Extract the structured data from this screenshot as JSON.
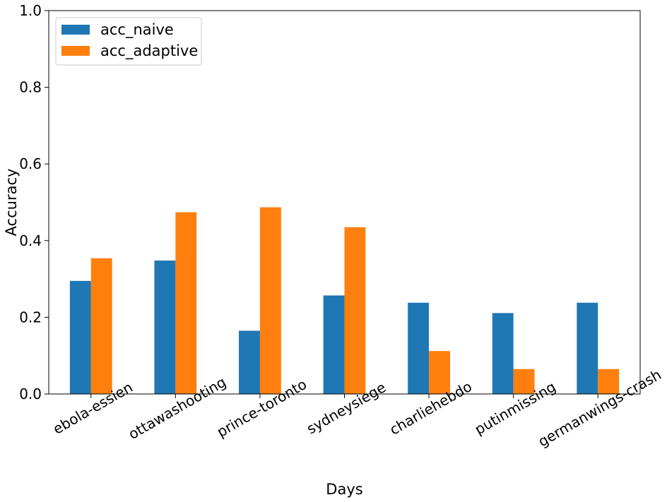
{
  "chart_data": {
    "type": "bar",
    "xlabel": "Days",
    "ylabel": "Accuracy",
    "ylim": [
      0,
      1.0
    ],
    "yticks": [
      0.0,
      0.2,
      0.4,
      0.6,
      0.8,
      1.0
    ],
    "ytick_labels": [
      "0.0",
      "0.2",
      "0.4",
      "0.6",
      "0.8",
      "1.0"
    ],
    "categories": [
      "ebola-essien",
      "ottawashooting",
      "prince-toronto",
      "sydneysiege",
      "charliehebdo",
      "putinmissing",
      "germanwings-crash"
    ],
    "series": [
      {
        "name": "acc_naive",
        "color": "#1f77b4",
        "values": [
          0.295,
          0.348,
          0.165,
          0.257,
          0.238,
          0.211,
          0.238
        ]
      },
      {
        "name": "acc_adaptive",
        "color": "#ff7f0e",
        "values": [
          0.354,
          0.474,
          0.487,
          0.435,
          0.112,
          0.065,
          0.065
        ]
      }
    ],
    "legend_position": "top-left",
    "grid": false
  }
}
